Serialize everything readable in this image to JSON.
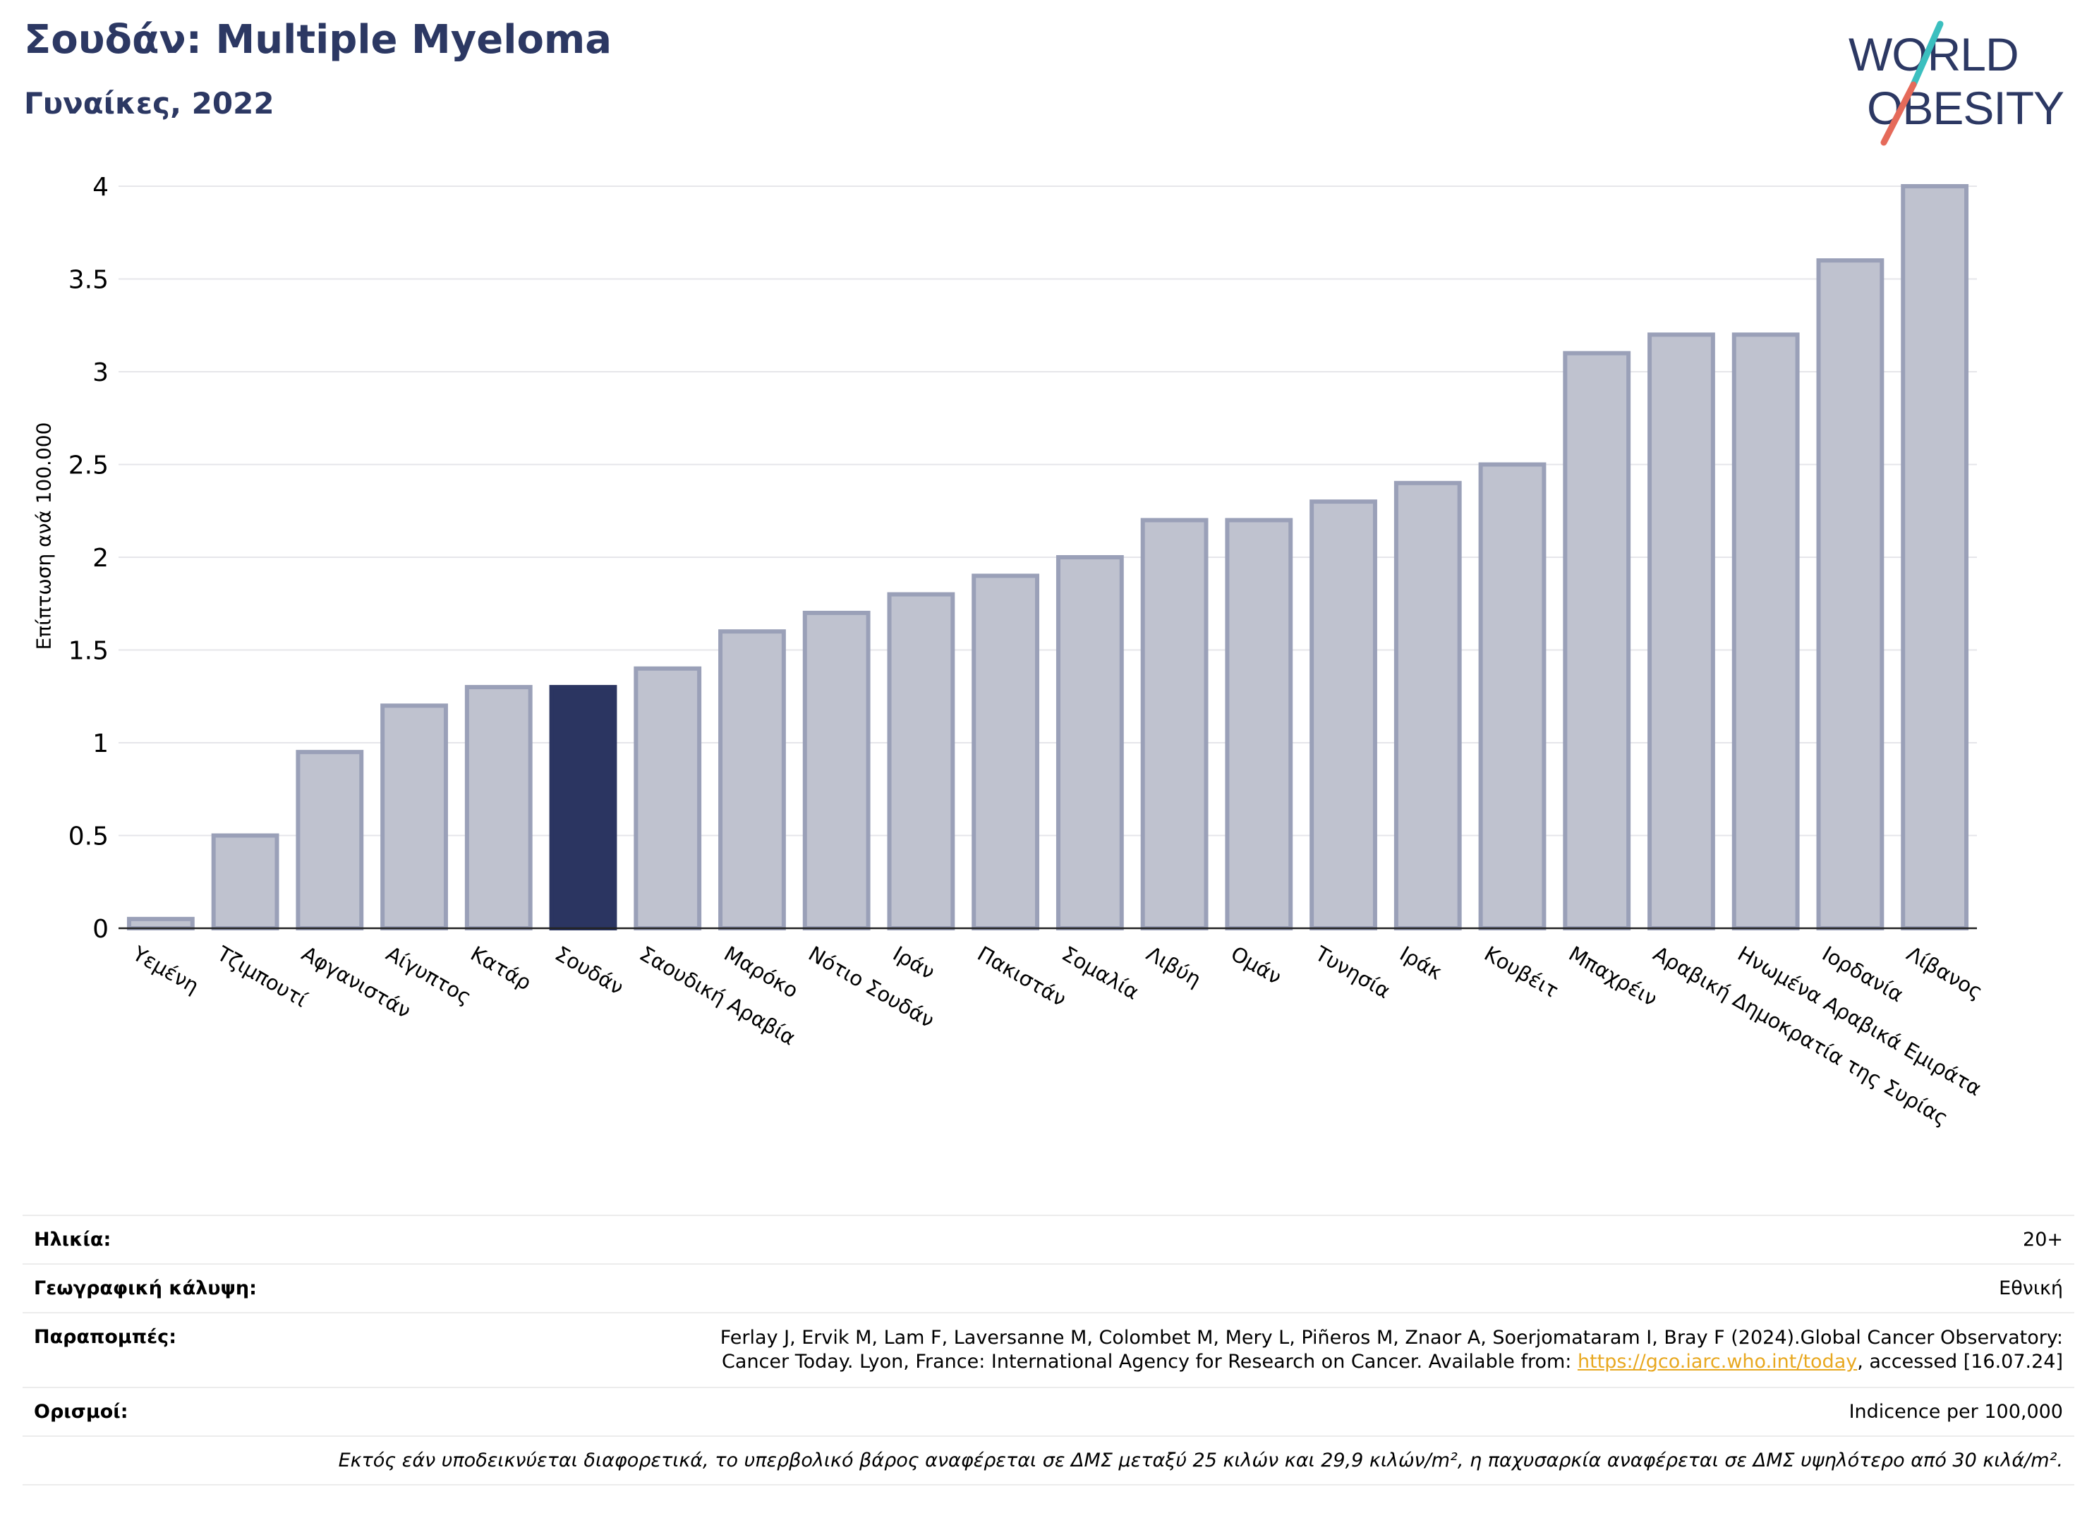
{
  "header": {
    "title": "Σουδάν: Multiple Myeloma",
    "subtitle": "Γυναίκες, 2022",
    "logo_line1": "WORLD",
    "logo_line2": "OBESITY"
  },
  "colors": {
    "highlight": "#2b3561",
    "bar_fill": "#bfc2cf",
    "bar_stroke": "#9aa0b8",
    "logo_blue": "#2c3863",
    "logo_teal": "#3bbfbf",
    "logo_red": "#e56a5a",
    "link": "#e8a820"
  },
  "chart_data": {
    "type": "bar",
    "ylabel": "Επίπτωση ανά 100.000",
    "ylim": [
      0,
      4
    ],
    "yticks": [
      "0",
      "0.5",
      "1",
      "1.5",
      "2",
      "2.5",
      "3",
      "3.5",
      "4"
    ],
    "ytick_values": [
      0,
      0.5,
      1,
      1.5,
      2,
      2.5,
      3,
      3.5,
      4
    ],
    "grid": true,
    "highlight": "Σουδάν",
    "categories": [
      "Υεμένη",
      "Τζιμπουτί",
      "Αφγανιστάν",
      "Αίγυπτος",
      "Κατάρ",
      "Σουδάν",
      "Σαουδική Αραβία",
      "Μαρόκο",
      "Νότιο Σουδάν",
      "Ιράν",
      "Πακιστάν",
      "Σομαλία",
      "Λιβύη",
      "Ομάν",
      "Τυνησία",
      "Ιράκ",
      "Κουβέιτ",
      "Μπαχρέιν",
      "Αραβική Δημοκρατία της Συρίας",
      "Ηνωμένα Αραβικά Εμιράτα",
      "Ιορδανία",
      "Λίβανος"
    ],
    "values": [
      0.05,
      0.5,
      0.95,
      1.2,
      1.3,
      1.3,
      1.4,
      1.6,
      1.7,
      1.8,
      1.9,
      2.0,
      2.2,
      2.2,
      2.3,
      2.4,
      2.5,
      3.1,
      3.2,
      3.2,
      3.6,
      4.0
    ]
  },
  "info": {
    "age_label": "Ηλικία:",
    "age_value": "20+",
    "coverage_label": "Γεωγραφική κάλυψη:",
    "coverage_value": "Εθνική",
    "refs_label": "Παραπομπές:",
    "refs_line1": "Ferlay J, Ervik M, Lam F, Laversanne M, Colombet M, Mery L, Piñeros M, Znaor A, Soerjomataram I, Bray F (2024).Global Cancer Observatory:",
    "refs_line2_pre": "Cancer Today. Lyon, France: International Agency for Research on Cancer. Available from: ",
    "refs_link": "https://gco.iarc.who.int/today",
    "refs_line2_post": ", accessed [16.07.24]",
    "defs_label": "Ορισμοί:",
    "defs_value": "Indicence per 100,000",
    "note": "Εκτός εάν υποδεικνύεται διαφορετικά, το υπερβολικό βάρος αναφέρεται σε ΔΜΣ μεταξύ 25 κιλών και 29,9 κιλών/m², η παχυσαρκία αναφέρεται σε ΔΜΣ υψηλότερο από 30 κιλά/m²."
  }
}
